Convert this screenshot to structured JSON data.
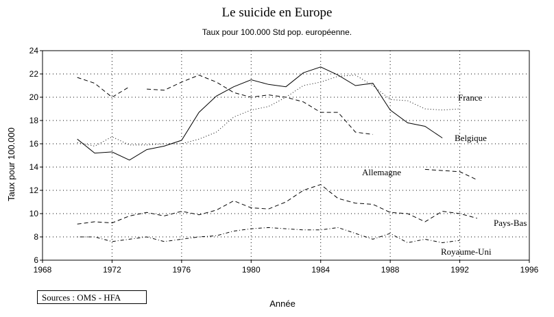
{
  "chart_data": {
    "type": "line",
    "title": "Le suicide en Europe",
    "subtitle": "Taux pour 100.000  Std pop. européenne.",
    "xlabel": "Année",
    "ylabel": "Taux pour 100.000",
    "xlim": [
      1968,
      1996
    ],
    "ylim": [
      6,
      24
    ],
    "xticks": [
      "1968",
      "1972",
      "1976",
      "1980",
      "1984",
      "1988",
      "1992",
      "1996"
    ],
    "yticks": [
      "6",
      "8",
      "10",
      "12",
      "14",
      "16",
      "18",
      "20",
      "22",
      "24"
    ],
    "grid": true,
    "series": [
      {
        "name": "France",
        "style": "dotted",
        "x": [
          1970,
          1971,
          1972,
          1973,
          1974,
          1975,
          1976,
          1977,
          1978,
          1979,
          1980,
          1981,
          1982,
          1983,
          1984,
          1985,
          1986,
          1987,
          1988,
          1989,
          1990,
          1991,
          1992
        ],
        "values": [
          16.1,
          15.8,
          16.6,
          15.9,
          15.9,
          16.0,
          16.0,
          16.4,
          17.0,
          18.3,
          18.9,
          19.2,
          20.0,
          21.0,
          21.3,
          21.8,
          21.9,
          21.0,
          19.8,
          19.7,
          19.0,
          18.9,
          19.0
        ]
      },
      {
        "name": "Belgique",
        "style": "solid",
        "x": [
          1970,
          1971,
          1972,
          1973,
          1974,
          1975,
          1976,
          1977,
          1978,
          1979,
          1980,
          1981,
          1982,
          1983,
          1984,
          1985,
          1986,
          1987,
          1988,
          1989,
          1990,
          1991
        ],
        "values": [
          16.4,
          15.2,
          15.3,
          14.6,
          15.5,
          15.8,
          16.3,
          18.7,
          20.1,
          20.9,
          21.5,
          21.1,
          20.9,
          22.1,
          22.6,
          21.9,
          21.0,
          21.2,
          18.9,
          17.8,
          17.5,
          16.5
        ]
      },
      {
        "name": "Allemagne",
        "style": "dashed",
        "segments": [
          {
            "x": [
              1970,
              1971,
              1972,
              1973
            ],
            "values": [
              21.7,
              21.2,
              20.0,
              20.9
            ]
          },
          {
            "x": [
              1974,
              1975,
              1976,
              1977,
              1978,
              1979,
              1980,
              1981,
              1982,
              1983,
              1984,
              1985,
              1986,
              1987
            ],
            "values": [
              20.7,
              20.6,
              21.3,
              21.9,
              21.3,
              20.4,
              20.0,
              20.2,
              20.0,
              19.6,
              18.7,
              18.7,
              17.0,
              16.8
            ]
          },
          {
            "x": [
              1990,
              1991,
              1992,
              1993
            ],
            "values": [
              13.8,
              13.7,
              13.6,
              12.9
            ]
          }
        ]
      },
      {
        "name": "Pays-Bas",
        "style": "dashed",
        "x": [
          1970,
          1971,
          1972,
          1973,
          1974,
          1975,
          1976,
          1977,
          1978,
          1979,
          1980,
          1981,
          1982,
          1983,
          1984,
          1985,
          1986,
          1987,
          1988,
          1989,
          1990,
          1991,
          1992,
          1993
        ],
        "values": [
          9.1,
          9.3,
          9.2,
          9.8,
          10.1,
          9.8,
          10.2,
          9.9,
          10.3,
          11.1,
          10.5,
          10.4,
          11.0,
          12.0,
          12.5,
          11.3,
          10.9,
          10.8,
          10.1,
          10.0,
          9.3,
          10.2,
          10.0,
          9.6
        ]
      },
      {
        "name": "Royaume-Uni",
        "style": "dashdot",
        "x": [
          1970,
          1971,
          1972,
          1973,
          1974,
          1975,
          1976,
          1977,
          1978,
          1979,
          1980,
          1981,
          1982,
          1983,
          1984,
          1985,
          1986,
          1987,
          1988,
          1989,
          1990,
          1991,
          1992
        ],
        "values": [
          8.0,
          8.0,
          7.6,
          7.8,
          8.0,
          7.6,
          7.8,
          8.0,
          8.1,
          8.5,
          8.7,
          8.8,
          8.7,
          8.6,
          8.6,
          8.8,
          8.3,
          7.8,
          8.3,
          7.5,
          7.8,
          7.5,
          7.7
        ]
      }
    ],
    "annotations": [
      "France",
      "Belgique",
      "Allemagne",
      "Pays-Bas",
      "Royaume-Uni"
    ]
  },
  "source_note": "Sources : OMS - HFA"
}
